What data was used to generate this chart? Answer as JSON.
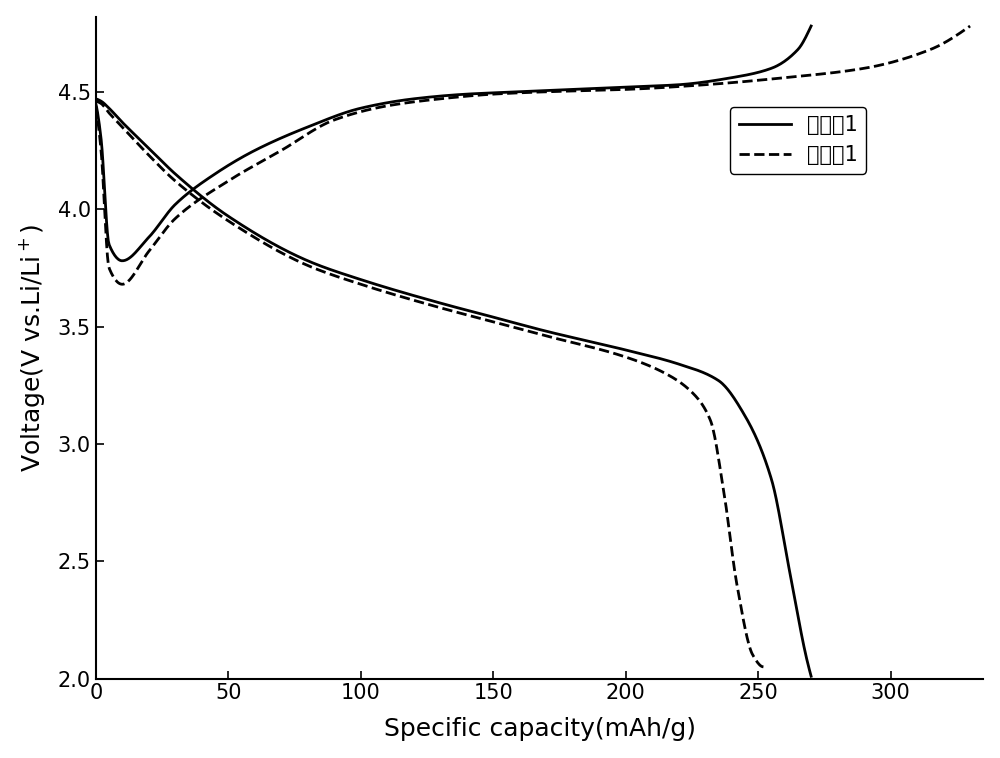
{
  "xlabel": "Specific capacity(mAh/g)",
  "ylabel": "Voltage(V vs.Li/Li$^+$)",
  "xlim": [
    0,
    335
  ],
  "ylim": [
    2.0,
    4.82
  ],
  "xticks": [
    0,
    50,
    100,
    150,
    200,
    250,
    300
  ],
  "yticks": [
    2.0,
    2.5,
    3.0,
    3.5,
    4.0,
    4.5
  ],
  "legend_solid": "实施例1",
  "legend_dashed": "对比例1",
  "line_color": "#000000",
  "linewidth": 2.0,
  "background_color": "#ffffff"
}
